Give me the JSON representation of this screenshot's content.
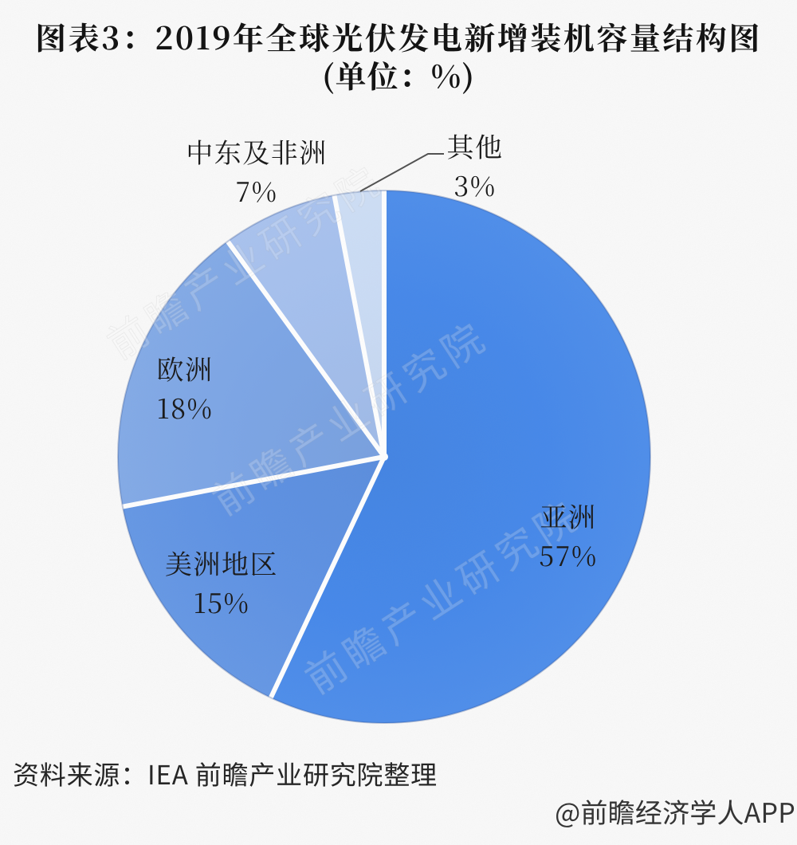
{
  "title": {
    "line1": "图表3：2019年全球光伏发电新增装机容量结构图",
    "line2": "(单位：%)"
  },
  "chart_data": {
    "type": "pie",
    "title": "图表3：2019年全球光伏发电新增装机容量结构图",
    "unit": "%",
    "start_angle_deg": 0,
    "clockwise": true,
    "legend": "none",
    "separator_color": "#ffffff",
    "series": [
      {
        "label": "亚洲",
        "value": 57,
        "percent_label": "57%",
        "color": "#4286ea"
      },
      {
        "label": "美洲地区",
        "value": 15,
        "percent_label": "15%",
        "color": "#5b90e4"
      },
      {
        "label": "欧洲",
        "value": 18,
        "percent_label": "18%",
        "color": "#7aa4e6"
      },
      {
        "label": "中东及非洲",
        "value": 7,
        "percent_label": "7%",
        "color": "#a3bfee"
      },
      {
        "label": "其他",
        "value": 3,
        "percent_label": "3%",
        "color": "#cadcf6"
      }
    ]
  },
  "source": {
    "text": "资料来源：IEA 前瞻产业研究院整理"
  },
  "watermark": {
    "diagonal": "前瞻产业研究院",
    "corner": "@前瞻经济学人APP"
  },
  "colors": {
    "background": "#fafafa",
    "title_text": "#0c0c0c",
    "label_text": "#141414",
    "leader_line": "#4d4d4d"
  }
}
